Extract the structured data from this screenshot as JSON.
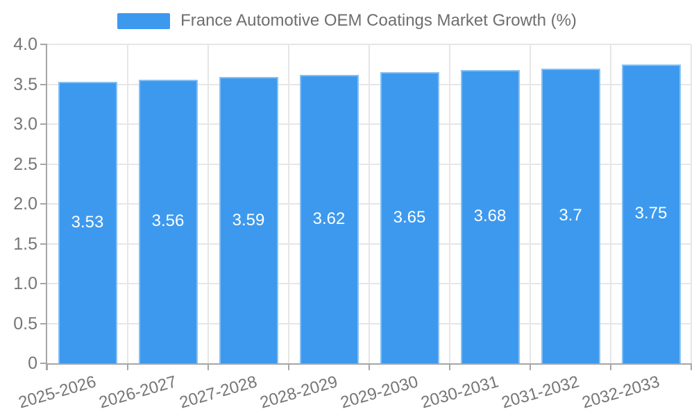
{
  "chart_data": {
    "type": "bar",
    "title": "France Automotive OEM Coatings Market Growth (%)",
    "categories": [
      "2025-2026",
      "2026-2027",
      "2027-2028",
      "2028-2029",
      "2029-2030",
      "2030-2031",
      "2031-2032",
      "2032-2033"
    ],
    "values": [
      3.53,
      3.56,
      3.59,
      3.62,
      3.65,
      3.68,
      3.7,
      3.75
    ],
    "value_labels": [
      "3.53",
      "3.56",
      "3.59",
      "3.62",
      "3.65",
      "3.68",
      "3.7",
      "3.75"
    ],
    "xlabel": "",
    "ylabel": "",
    "ylim": [
      0,
      4
    ],
    "yticks": [
      "0",
      "0.5",
      "1.0",
      "1.5",
      "2.0",
      "2.5",
      "3.0",
      "3.5",
      "4.0"
    ],
    "grid": true,
    "legend_position": "top-center",
    "colors": {
      "bar": "#3D99EE",
      "bar_border": "rgba(255,255,255,0.38)",
      "grid": "#E6E6E6",
      "axis": "#A6A6A6",
      "axis_text": "#767676",
      "title_text": "#6E6E6E",
      "bar_label": "#FFFFFF",
      "background": "#FFFFFF"
    }
  }
}
